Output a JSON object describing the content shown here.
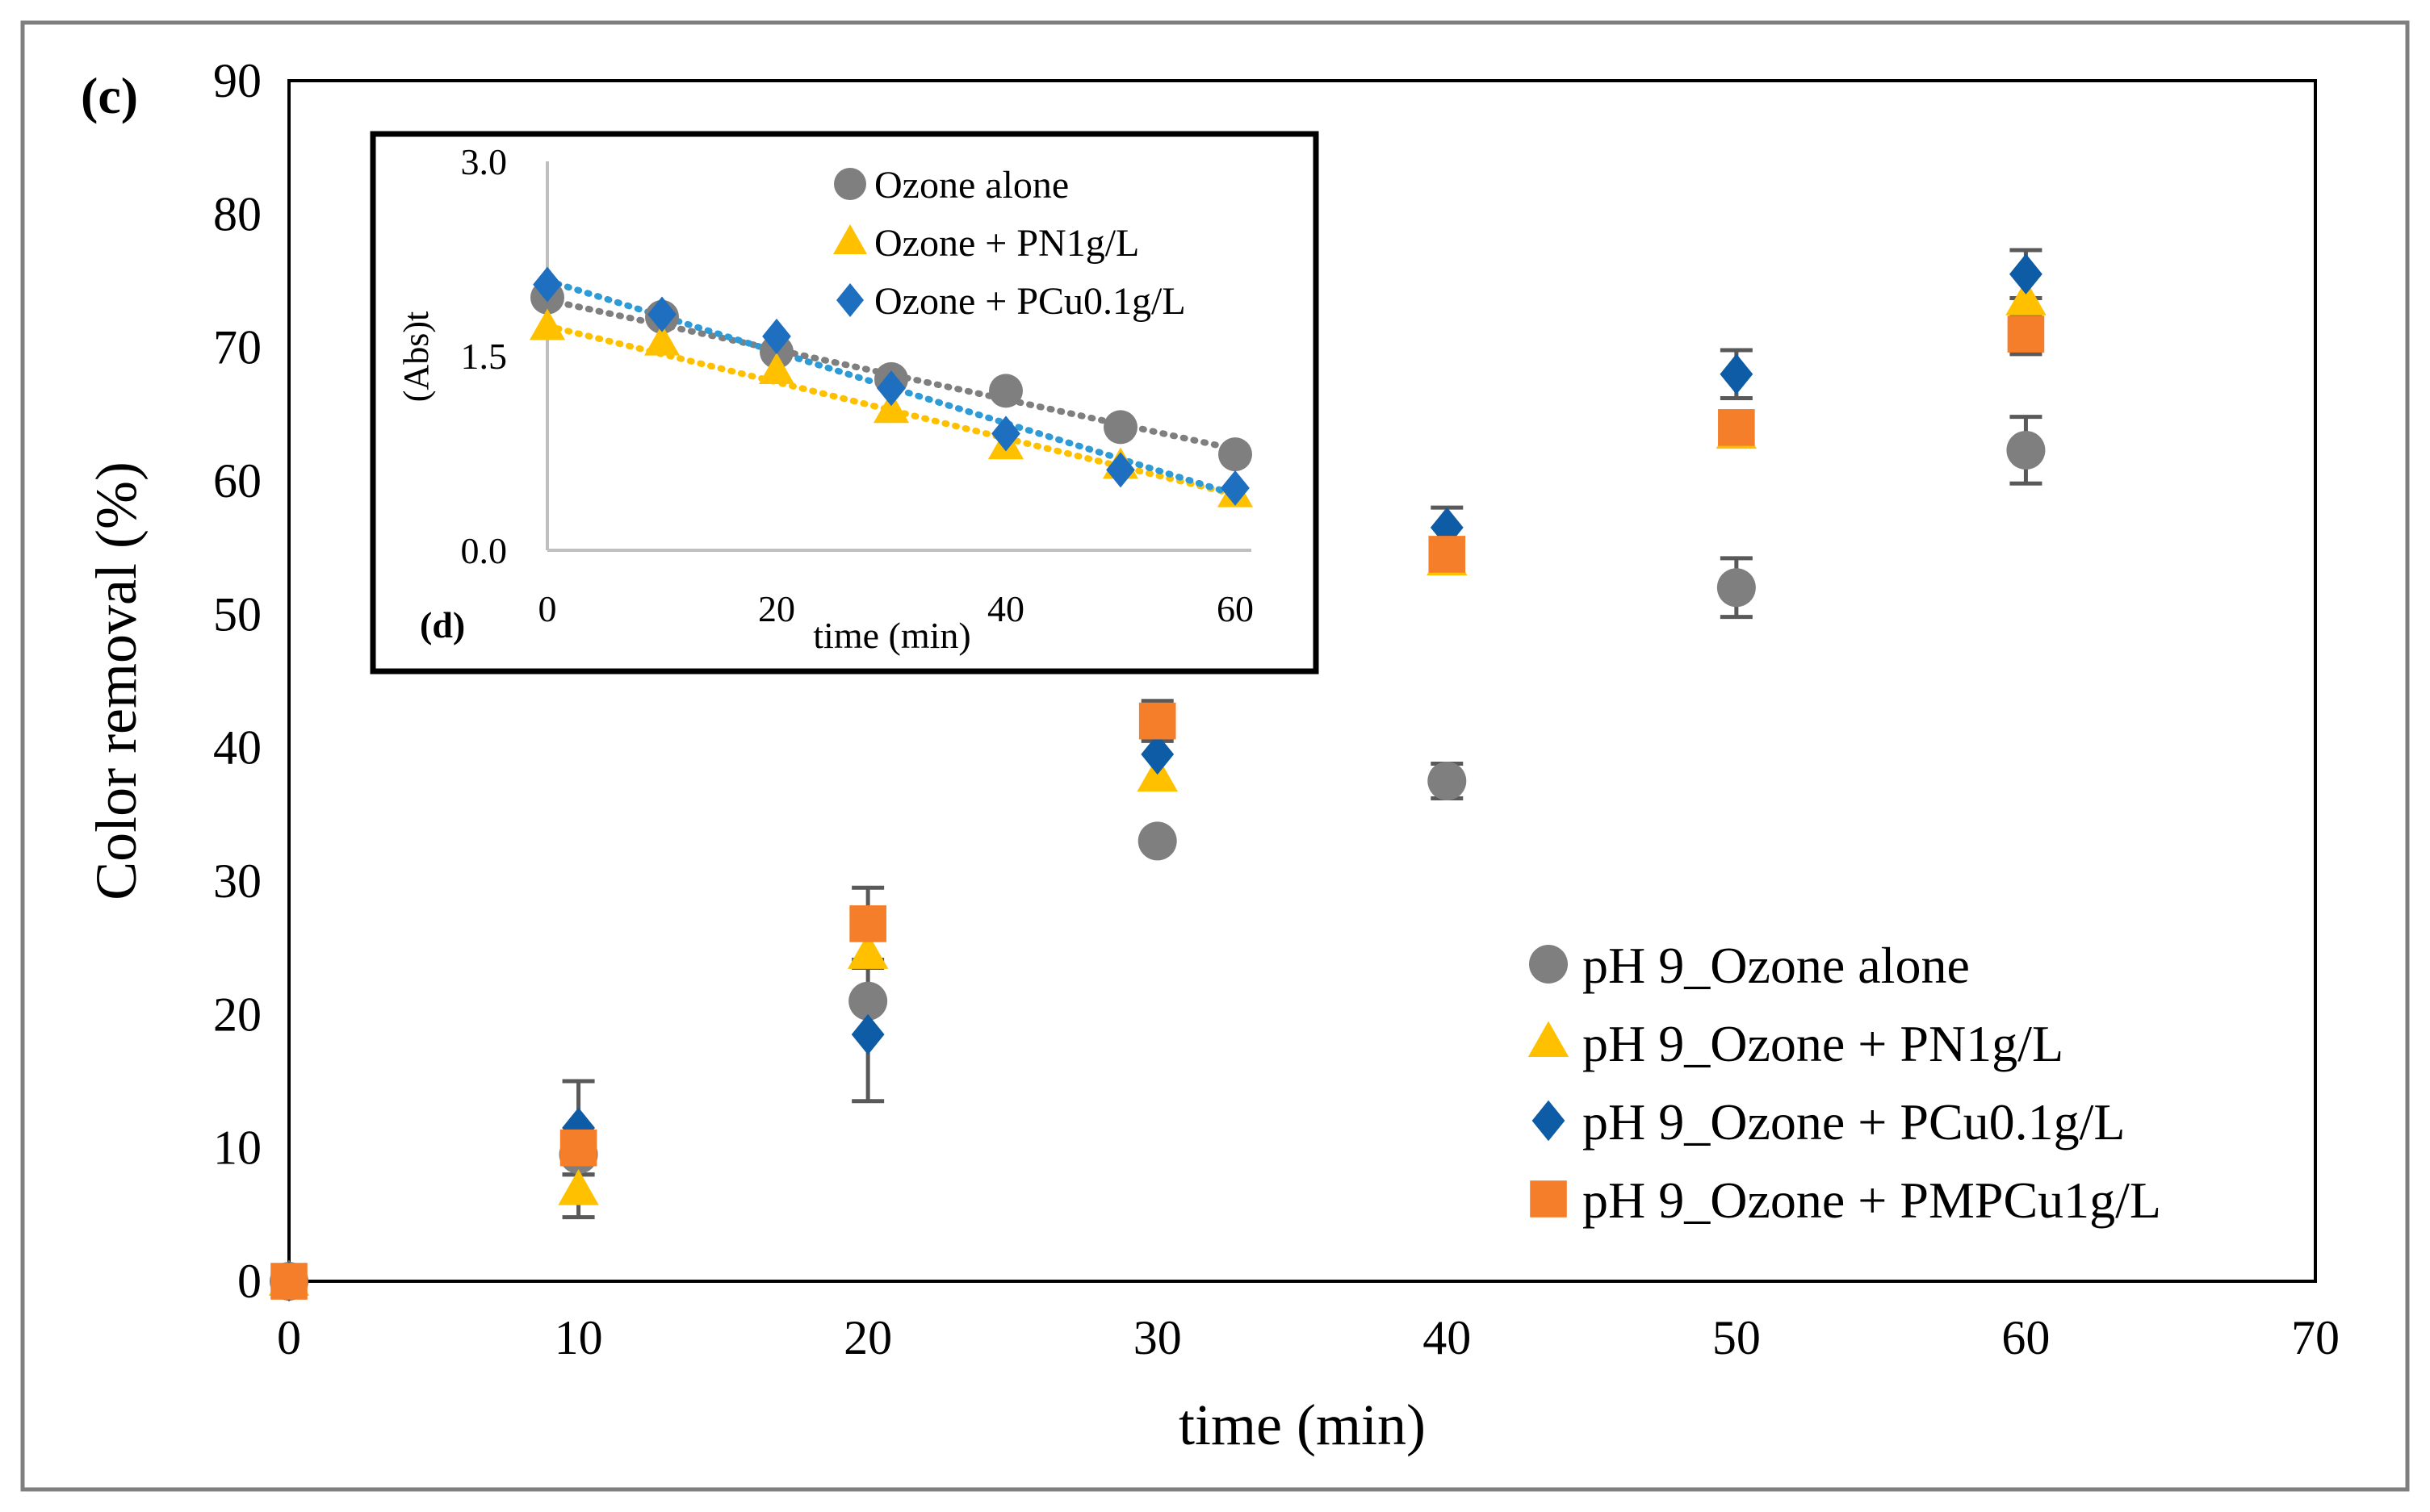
{
  "chart_data": [
    {
      "type": "scatter",
      "panel_label": "(c)",
      "xlabel": "time (min)",
      "ylabel": "Color removal (%)",
      "xlim": [
        0,
        70
      ],
      "ylim": [
        0,
        90
      ],
      "xticks": [
        0,
        10,
        20,
        30,
        40,
        50,
        60,
        70
      ],
      "yticks": [
        0,
        10,
        20,
        30,
        40,
        50,
        60,
        70,
        80,
        90
      ],
      "grid": false,
      "legend_position": "bottom-right",
      "x": [
        0,
        10,
        20,
        30,
        40,
        50,
        60
      ],
      "series": [
        {
          "name": "pH 9_Ozone alone",
          "marker": "circle",
          "color": "#7f7f7f",
          "values": [
            0,
            9.5,
            21,
            33,
            37.5,
            52,
            62.3
          ],
          "error": [
            0,
            1.5,
            0,
            0,
            1.3,
            2.2,
            2.5
          ]
        },
        {
          "name": "pH 9_Ozone + PN1g/L",
          "marker": "triangle",
          "color": "#ffc000",
          "values": [
            0,
            6.8,
            24.5,
            37.8,
            54,
            63.5,
            73.5
          ],
          "error": [
            0,
            2,
            0,
            0,
            0,
            0,
            0
          ]
        },
        {
          "name": "pH 9_Ozone + PCu0.1g/L",
          "marker": "diamond",
          "color": "#0e5ba6",
          "values": [
            0,
            11.5,
            18.5,
            39.5,
            56.5,
            68,
            75.5
          ],
          "error": [
            0,
            3.5,
            5,
            0,
            1.5,
            1.8,
            1.8
          ]
        },
        {
          "name": "pH 9_Ozone + PMPCu1g/L",
          "marker": "square",
          "color": "#f47e2a",
          "values": [
            0,
            10,
            26.8,
            42,
            54.5,
            64,
            71
          ],
          "error": [
            0,
            0,
            2.7,
            1.5,
            0,
            0,
            1.5
          ]
        }
      ]
    },
    {
      "type": "scatter",
      "panel_label": "(d)",
      "xlabel": "time (min)",
      "ylabel": "(Abs)t",
      "xlim": [
        0,
        60
      ],
      "ylim": [
        0,
        3
      ],
      "xticks": [
        0,
        20,
        40,
        60
      ],
      "yticks": [
        "0.0",
        "1.5",
        "3.0"
      ],
      "trendlines": "dotted linear",
      "legend_position": "top-right",
      "x": [
        0,
        10,
        20,
        30,
        40,
        50,
        60
      ],
      "series": [
        {
          "name": "Ozone alone",
          "marker": "circle",
          "color": "#7f7f7f",
          "values": [
            1.95,
            1.8,
            1.53,
            1.32,
            1.23,
            0.95,
            0.74
          ],
          "trend": [
            1.93,
            0.78
          ]
        },
        {
          "name": "Ozone + PN1g/L",
          "marker": "triangle",
          "color": "#ffc000",
          "values": [
            1.72,
            1.6,
            1.38,
            1.08,
            0.8,
            0.65,
            0.43
          ],
          "trend": [
            1.73,
            0.43
          ]
        },
        {
          "name": "Ozone + PCu0.1g/L",
          "marker": "diamond",
          "color": "#1f6fc0",
          "trend_color": "#2e9ad6",
          "values": [
            2.05,
            1.82,
            1.65,
            1.25,
            0.9,
            0.62,
            0.48
          ],
          "trend": [
            2.08,
            0.43
          ]
        }
      ]
    }
  ]
}
